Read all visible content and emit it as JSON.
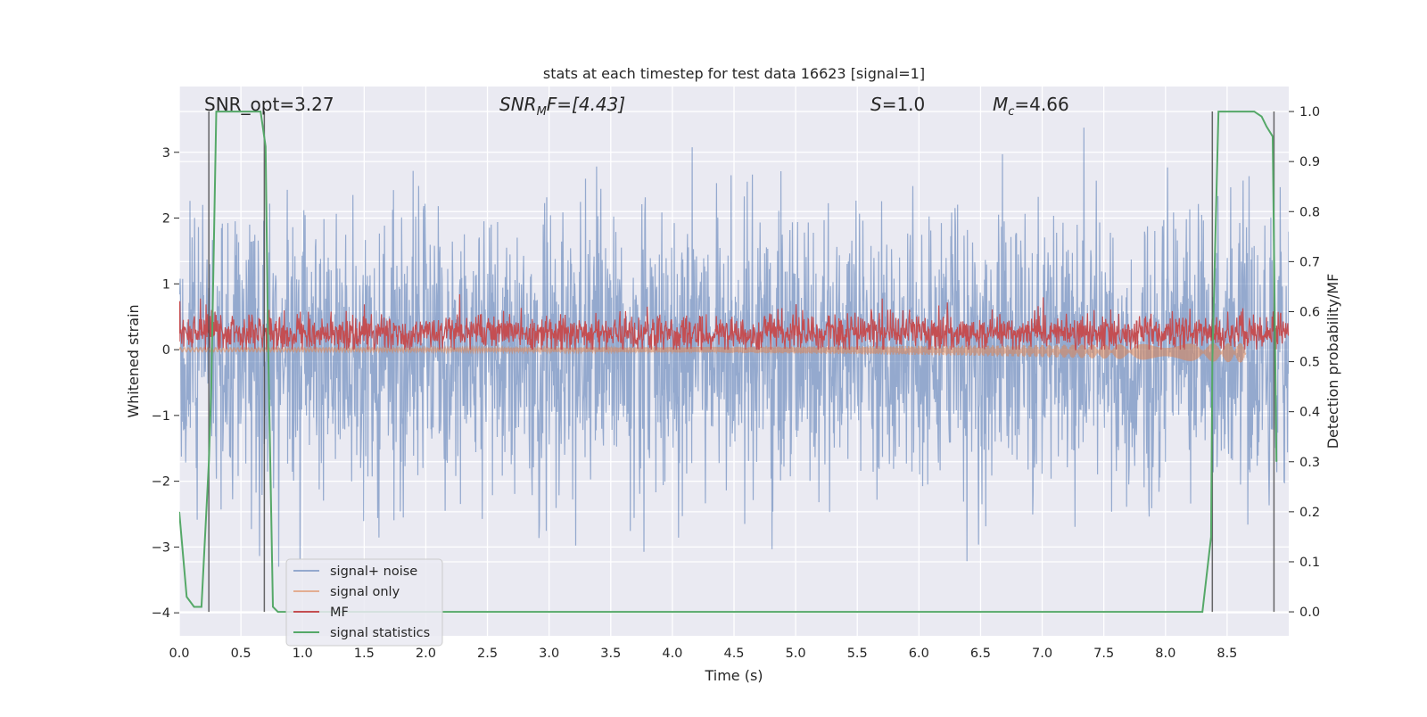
{
  "chart_data": {
    "type": "line",
    "title": "stats at each timestep for test data 16623 [signal=1]",
    "xlabel": "Time (s)",
    "ylabel_left": "Whitened strain",
    "ylabel_right": "Detection probability/MF",
    "xlim": [
      0.0,
      9.0
    ],
    "ylim_left": [
      -4.35,
      4.0
    ],
    "ylim_right": [
      -0.048,
      1.05
    ],
    "xticks": [
      "0.0",
      "0.5",
      "1.0",
      "1.5",
      "2.0",
      "2.5",
      "3.0",
      "3.5",
      "4.0",
      "4.5",
      "5.0",
      "5.5",
      "6.0",
      "6.5",
      "7.0",
      "7.5",
      "8.0",
      "8.5"
    ],
    "xtick_values": [
      0.0,
      0.5,
      1.0,
      1.5,
      2.0,
      2.5,
      3.0,
      3.5,
      4.0,
      4.5,
      5.0,
      5.5,
      6.0,
      6.5,
      7.0,
      7.5,
      8.0,
      8.5
    ],
    "yticks_left": [
      "−4",
      "−3",
      "−2",
      "−1",
      "0",
      "1",
      "2",
      "3"
    ],
    "ytick_values_left": [
      -4,
      -3,
      -2,
      -1,
      0,
      1,
      2,
      3
    ],
    "yticks_right": [
      "0.0",
      "0.1",
      "0.2",
      "0.3",
      "0.4",
      "0.5",
      "0.6",
      "0.7",
      "0.8",
      "0.9",
      "1.0"
    ],
    "ytick_values_right": [
      0.0,
      0.1,
      0.2,
      0.3,
      0.4,
      0.5,
      0.6,
      0.7,
      0.8,
      0.9,
      1.0
    ],
    "grid": true,
    "legend_position": "lower-left",
    "annotations": {
      "snr_opt": "SNR_opt=3.27",
      "snr_mf_sym": "SNR",
      "snr_mf_sub": "M",
      "snr_mf_rest": "F=[4.43]",
      "s_sym": "S",
      "s_rest": "=1.0",
      "mc_sym": "M",
      "mc_sub": "c",
      "mc_rest": "=4.66"
    },
    "series": [
      {
        "name": "signal+ noise",
        "color": "#4c72b0",
        "axis": "left",
        "envelope": {
          "typical_abs": 1.7,
          "max": 3.6,
          "min": -4.0
        }
      },
      {
        "name": "signal only",
        "color": "#dd8452",
        "axis": "left",
        "amplitude_start": 0.03,
        "amplitude_end": 0.15,
        "t_end": 8.65
      },
      {
        "name": "MF",
        "color": "#c44e52",
        "axis": "left",
        "mean": 0.25,
        "range": [
          0.0,
          0.95
        ]
      },
      {
        "name": "signal statistics",
        "color": "#55a868",
        "axis": "right",
        "t": [
          0.0,
          0.06,
          0.12,
          0.18,
          0.24,
          0.26,
          0.3,
          0.66,
          0.7,
          0.72,
          0.76,
          0.8,
          0.9,
          8.3,
          8.37,
          8.38,
          8.43,
          8.72,
          8.78,
          8.82,
          8.87,
          8.9
        ],
        "p": [
          0.2,
          0.03,
          0.01,
          0.01,
          0.3,
          0.45,
          1.0,
          1.0,
          0.93,
          0.55,
          0.01,
          0.0,
          0.0,
          0.0,
          0.15,
          0.5,
          1.0,
          1.0,
          0.99,
          0.97,
          0.95,
          0.3
        ]
      }
    ],
    "vertical_lines": [
      0.24,
      0.69,
      8.38,
      8.88
    ],
    "legend": [
      "signal+ noise",
      "signal only",
      "MF",
      "signal statistics"
    ]
  }
}
